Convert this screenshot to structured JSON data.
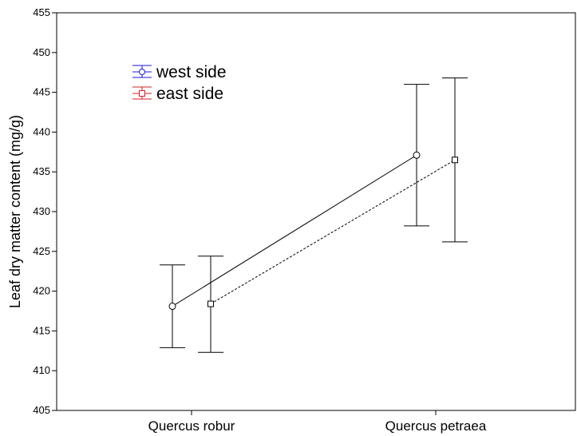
{
  "chart_data": {
    "type": "line",
    "title": "",
    "xlabel": "",
    "ylabel": "Leaf dry matter content (mg/g)",
    "categories": [
      "Quercus robur",
      "Quercus petraea"
    ],
    "ylim": [
      405,
      455
    ],
    "yticks": [
      405,
      410,
      415,
      420,
      425,
      430,
      435,
      440,
      445,
      450,
      455
    ],
    "grid": false,
    "legend_position": "top-left",
    "series": [
      {
        "name": "west side",
        "marker": "circle",
        "line_style": "solid",
        "legend_color": "#1a1adc",
        "values": [
          418.1,
          437.1
        ],
        "error_low": [
          412.9,
          428.2
        ],
        "error_high": [
          423.3,
          446.0
        ]
      },
      {
        "name": "east side",
        "marker": "square",
        "line_style": "dashed",
        "legend_color": "#d42020",
        "values": [
          418.4,
          436.5
        ],
        "error_low": [
          412.3,
          426.2
        ],
        "error_high": [
          424.4,
          446.8
        ]
      }
    ]
  }
}
